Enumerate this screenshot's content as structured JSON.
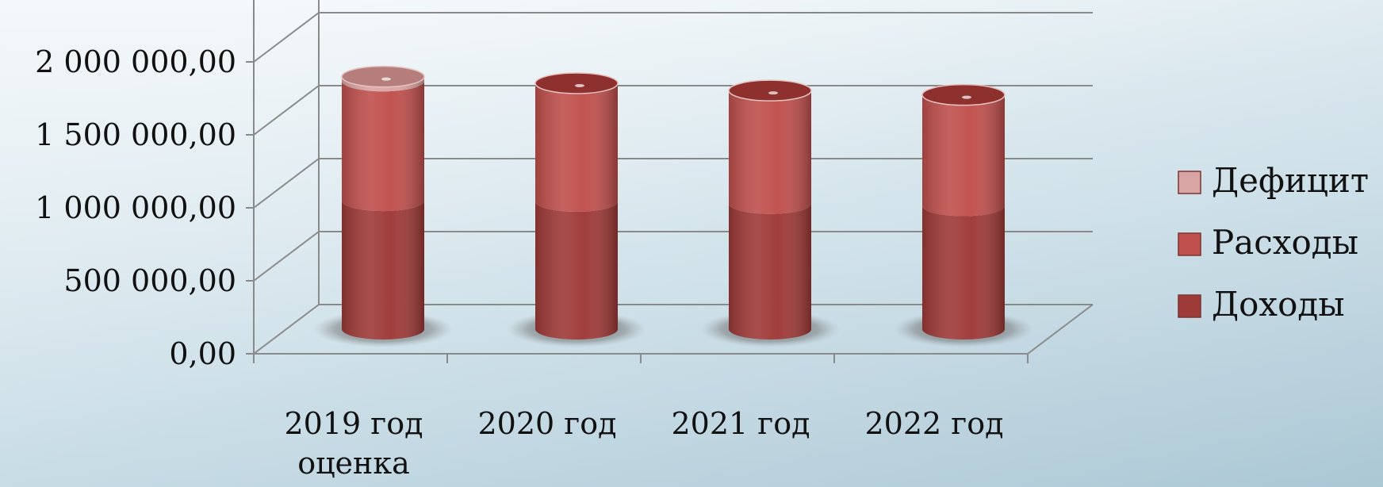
{
  "chart_data": {
    "type": "bar",
    "stacked": true,
    "three_d": true,
    "categories": [
      [
        "2019 год",
        "оценка"
      ],
      [
        "2020 год"
      ],
      [
        "2021 год"
      ],
      [
        "2022 год"
      ]
    ],
    "series": [
      {
        "name": "Доходы",
        "color": "#9e3a38",
        "values": [
          880000,
          875000,
          860000,
          845000
        ]
      },
      {
        "name": "Расходы",
        "color": "#c0504d",
        "values": [
          820000,
          810000,
          775000,
          760000
        ]
      },
      {
        "name": "Дефицит",
        "color": "#d9a5a4",
        "values": [
          30000,
          0,
          0,
          0
        ]
      }
    ],
    "y_ticks": [
      "0,00",
      "500 000,00",
      "1 000 000,00",
      "1 500 000,00",
      "2 000 000,00"
    ],
    "ylim": [
      0,
      2000000
    ],
    "legend_position": "right",
    "grid": true
  }
}
